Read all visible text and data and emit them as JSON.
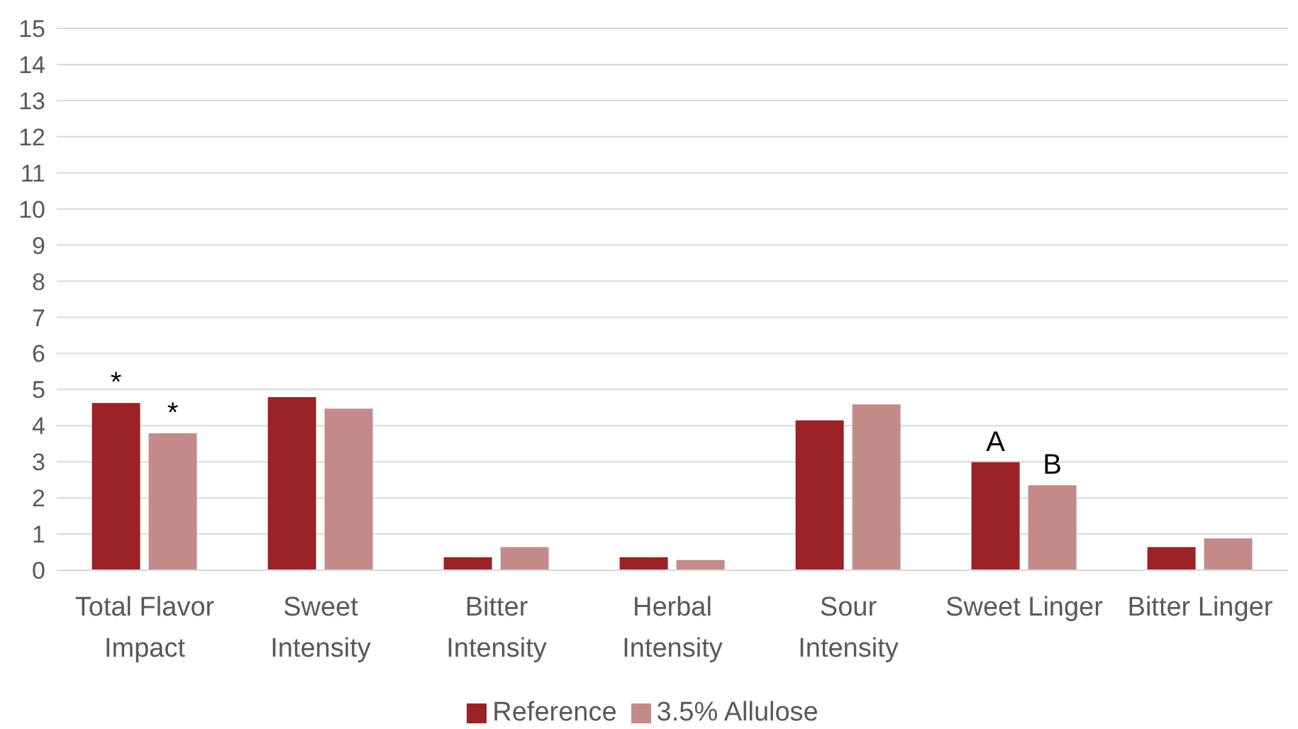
{
  "chart_data": {
    "type": "bar",
    "categories": [
      "Total Flavor Impact",
      "Sweet Intensity",
      "Bitter Intensity",
      "Herbal Intensity",
      "Sour Intensity",
      "Sweet Linger",
      "Bitter Linger"
    ],
    "series": [
      {
        "name": "Reference",
        "color": "#9b2226",
        "values": [
          4.63,
          4.79,
          0.36,
          0.36,
          4.15,
          2.99,
          0.64
        ]
      },
      {
        "name": "3.5% Allulose",
        "color": "#c48a8a",
        "values": [
          3.79,
          4.47,
          0.64,
          0.28,
          4.59,
          2.35,
          0.88
        ]
      }
    ],
    "ylim": [
      0,
      15
    ],
    "yticks": [
      0,
      1,
      2,
      3,
      4,
      5,
      6,
      7,
      8,
      9,
      10,
      11,
      12,
      13,
      14,
      15
    ],
    "grid": "y",
    "legend": "bottom",
    "annotations": [
      {
        "text": "*",
        "x": "Total Flavor Impact",
        "y": 4.63
      },
      {
        "text": "*",
        "x": "Total Flavor Impact",
        "y": 3.79
      },
      {
        "text": "A",
        "x": "Sweet Linger",
        "y": 2.99
      },
      {
        "text": "B",
        "x": "Sweet Linger",
        "y": 2.35
      }
    ]
  }
}
